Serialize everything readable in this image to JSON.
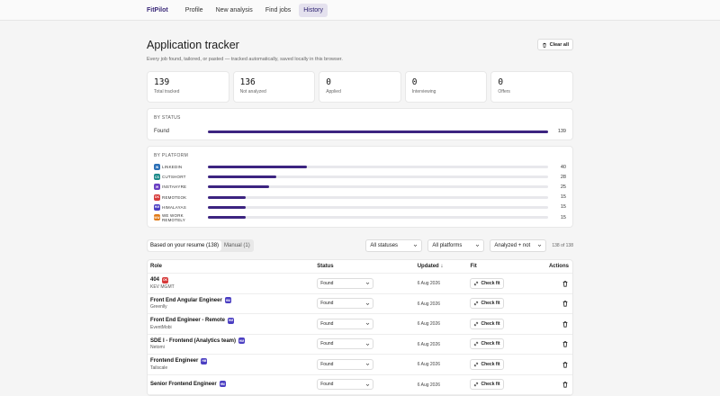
{
  "nav": {
    "brand": "FitPilot",
    "items": [
      "Profile",
      "New analysis",
      "Find jobs",
      "History"
    ],
    "active": "History"
  },
  "header": {
    "title": "Application tracker",
    "subtitle": "Every job found, tailored, or pasted — tracked automatically, saved locally in this browser.",
    "clear_label": "Clear all"
  },
  "stats": [
    {
      "value": "139",
      "label": "Total tracked"
    },
    {
      "value": "136",
      "label": "Not analyzed"
    },
    {
      "value": "0",
      "label": "Applied"
    },
    {
      "value": "0",
      "label": "Interviewing"
    },
    {
      "value": "0",
      "label": "Offers"
    }
  ],
  "by_status": {
    "heading": "BY STATUS",
    "rows": [
      {
        "label": "Found",
        "count": 139,
        "fraction": 1.0
      }
    ]
  },
  "by_platform": {
    "heading": "BY PLATFORM",
    "rows": [
      {
        "label": "LINKEDIN",
        "badge": "IN",
        "color": "#2b6fb6",
        "count": 40,
        "fraction": 0.29
      },
      {
        "label": "CUTSHORT",
        "badge": "CS",
        "color": "#1d8a8a",
        "count": 28,
        "fraction": 0.2
      },
      {
        "label": "INSTAHYRE",
        "badge": "IH",
        "color": "#6a3fc2",
        "count": 25,
        "fraction": 0.18
      },
      {
        "label": "REMOTEOK",
        "badge": "OK",
        "color": "#d63a3a",
        "count": 15,
        "fraction": 0.11
      },
      {
        "label": "HIMALAYAS",
        "badge": "HM",
        "color": "#4b3fc2",
        "count": 15,
        "fraction": 0.11
      },
      {
        "label": "WE WORK REMOTELY",
        "badge": "WW",
        "color": "#e07b1a",
        "count": 15,
        "fraction": 0.11
      }
    ]
  },
  "filters": {
    "tabs": [
      "Based on your resume (138)",
      "Manual (1)"
    ],
    "active_tab": "Based on your resume (138)",
    "status_select": "All statuses",
    "platform_select": "All platforms",
    "analysis_select": "Analyzed + not",
    "count_text": "138 of 138"
  },
  "table": {
    "headers": {
      "role": "Role",
      "status": "Status",
      "updated": "Updated ↓",
      "fit": "Fit",
      "actions": "Actions"
    },
    "fit_label": "Check fit",
    "rows": [
      {
        "role": "404",
        "company": "KEV MGMT",
        "badge": "OK",
        "badge_color": "#d63a3a",
        "status": "Found",
        "updated": "6 Aug 2026"
      },
      {
        "role": "Front End Angular Engineer",
        "company": "Greenlly",
        "badge": "HM",
        "badge_color": "#4b3fc2",
        "status": "Found",
        "updated": "6 Aug 2026"
      },
      {
        "role": "Front End Engineer - Remote",
        "company": "EventMobi",
        "badge": "HM",
        "badge_color": "#4b3fc2",
        "status": "Found",
        "updated": "6 Aug 2026"
      },
      {
        "role": "SDE I - Frontend (Analytics team)",
        "company": "Netomi",
        "badge": "HM",
        "badge_color": "#4b3fc2",
        "status": "Found",
        "updated": "6 Aug 2026"
      },
      {
        "role": "Frontend Engineer",
        "company": "Tailscale",
        "badge": "HM",
        "badge_color": "#4b3fc2",
        "status": "Found",
        "updated": "6 Aug 2026"
      },
      {
        "role": "Senior Frontend Engineer",
        "company": "",
        "badge": "HM",
        "badge_color": "#4b3fc2",
        "status": "Found",
        "updated": "6 Aug 2026"
      }
    ]
  }
}
